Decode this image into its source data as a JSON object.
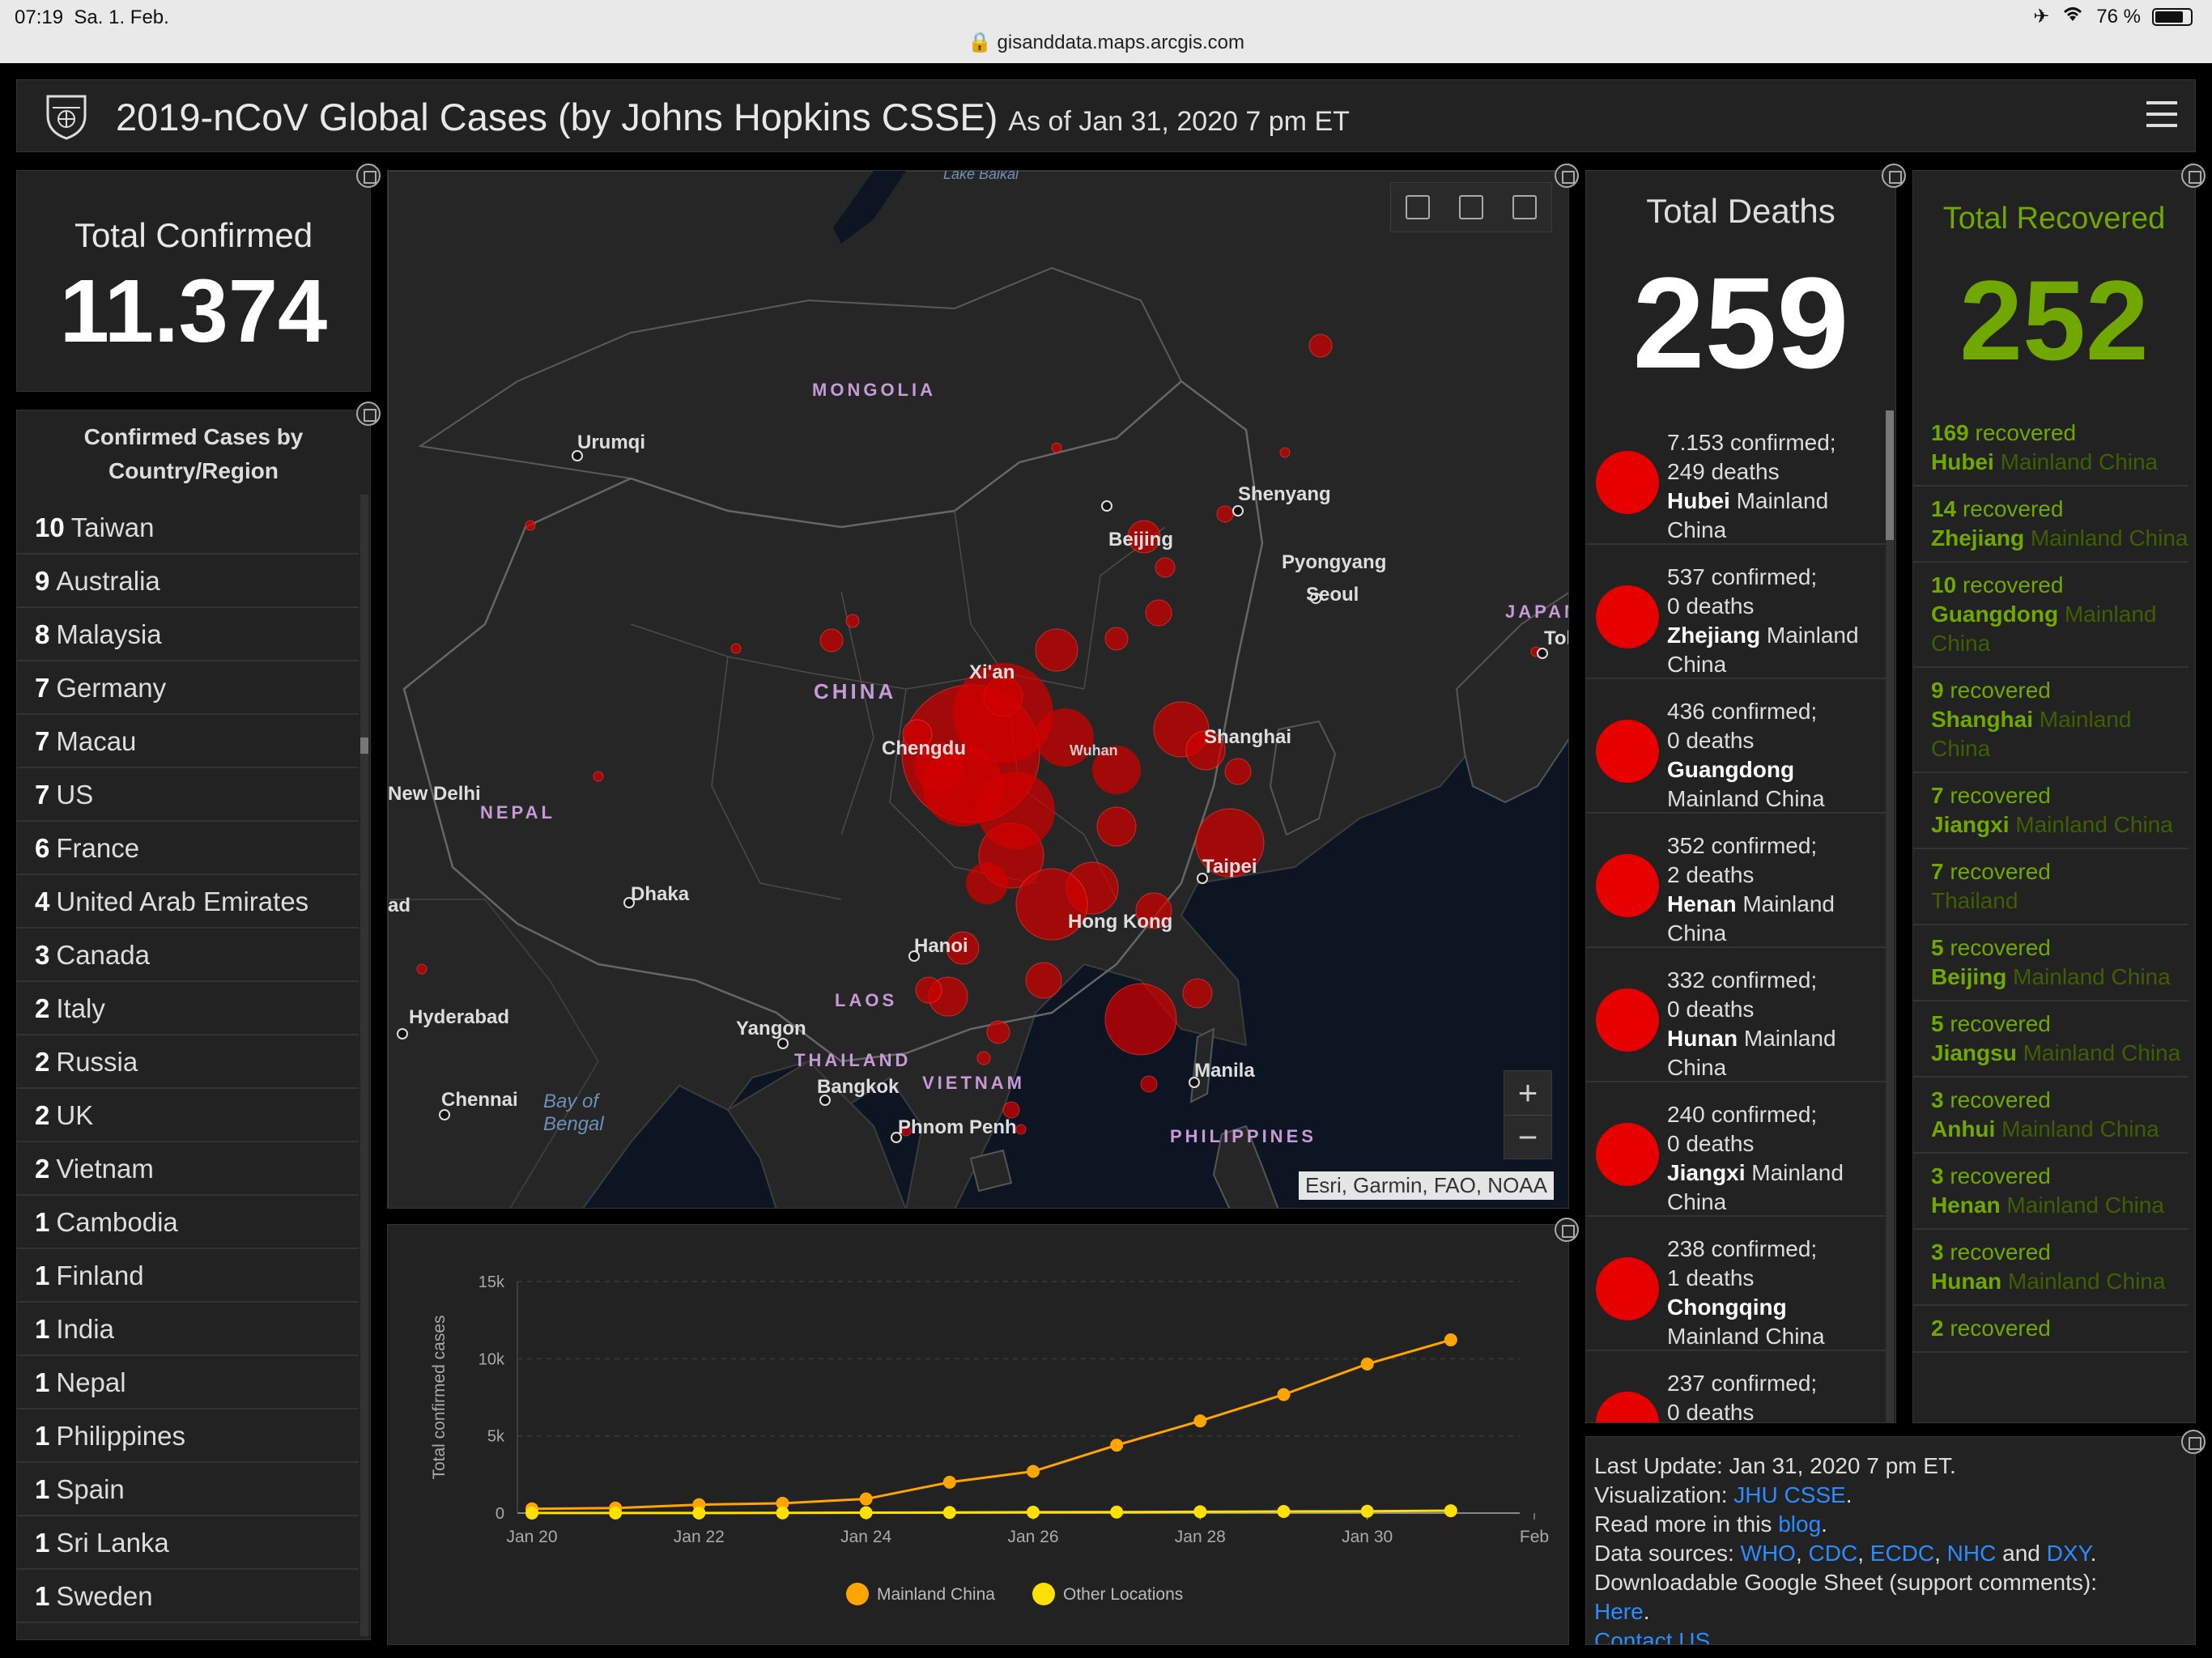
{
  "status_bar": {
    "time": "07:19",
    "date": "Sa. 1. Feb.",
    "battery": "76 %",
    "url": "gisanddata.maps.arcgis.com"
  },
  "header": {
    "title": "2019-nCoV Global Cases (by Johns Hopkins CSSE)",
    "as_of": "As of Jan 31, 2020 7 pm ET"
  },
  "total_confirmed": {
    "label": "Total Confirmed",
    "value": "11.374"
  },
  "confirmed_by_country": {
    "title_line1": "Confirmed Cases by",
    "title_line2": "Country/Region",
    "rows": [
      {
        "count": "10",
        "name": "Taiwan"
      },
      {
        "count": "9",
        "name": "Australia"
      },
      {
        "count": "8",
        "name": "Malaysia"
      },
      {
        "count": "7",
        "name": "Germany"
      },
      {
        "count": "7",
        "name": "Macau"
      },
      {
        "count": "7",
        "name": "US"
      },
      {
        "count": "6",
        "name": "France"
      },
      {
        "count": "4",
        "name": "United Arab Emirates"
      },
      {
        "count": "3",
        "name": "Canada"
      },
      {
        "count": "2",
        "name": "Italy"
      },
      {
        "count": "2",
        "name": "Russia"
      },
      {
        "count": "2",
        "name": "UK"
      },
      {
        "count": "2",
        "name": "Vietnam"
      },
      {
        "count": "1",
        "name": "Cambodia"
      },
      {
        "count": "1",
        "name": "Finland"
      },
      {
        "count": "1",
        "name": "India"
      },
      {
        "count": "1",
        "name": "Nepal"
      },
      {
        "count": "1",
        "name": "Philippines"
      },
      {
        "count": "1",
        "name": "Spain"
      },
      {
        "count": "1",
        "name": "Sri Lanka"
      },
      {
        "count": "1",
        "name": "Sweden"
      }
    ]
  },
  "map": {
    "attribution": "Esri, Garmin, FAO, NOAA",
    "zoom_in": "+",
    "zoom_out": "−",
    "labels": {
      "mongolia": "MONGOLIA",
      "china": "CHINA",
      "nepal": "NEPAL",
      "japan": "JAPAN",
      "laos": "LAOS",
      "thailand": "THAILAND",
      "vietnam": "VIETNAM",
      "philippines": "PHILIPPINES",
      "baikal": "Lake Baikal",
      "bay_of_bengal_1": "Bay of",
      "bay_of_bengal_2": "Bengal",
      "urumqi": "Urumqi",
      "beijing": "Beijing",
      "shenyang": "Shenyang",
      "pyongyang": "Pyongyang",
      "seoul": "Seoul",
      "tokyo": "Tok",
      "xian": "Xi'an",
      "chengdu": "Chengdu",
      "wuhan": "Wuhan",
      "shanghai": "Shanghai",
      "new_delhi": "New Delhi",
      "dhaka": "Dhaka",
      "taipei": "Taipei",
      "hong_kong": "Hong Kong",
      "hanoi": "Hanoi",
      "ad": "ad",
      "hyderabad": "Hyderabad",
      "yangon": "Yangon",
      "bangkok": "Bangkok",
      "chennai": "Chennai",
      "phnom_penh": "Phnom Penh",
      "manila": "Manila"
    }
  },
  "total_deaths": {
    "label": "Total Deaths",
    "value": "259",
    "rows": [
      {
        "confirmed": "7.153 confirmed;",
        "deaths": "249 deaths",
        "place": "Hubei",
        "region": "Mainland China"
      },
      {
        "confirmed": "537 confirmed;",
        "deaths": "0 deaths",
        "place": "Zhejiang",
        "region": "Mainland China"
      },
      {
        "confirmed": "436 confirmed;",
        "deaths": "0 deaths",
        "place": "Guangdong",
        "region": "Mainland China"
      },
      {
        "confirmed": "352 confirmed;",
        "deaths": "2 deaths",
        "place": "Henan",
        "region": "Mainland China"
      },
      {
        "confirmed": "332 confirmed;",
        "deaths": "0 deaths",
        "place": "Hunan",
        "region": "Mainland China"
      },
      {
        "confirmed": "240 confirmed;",
        "deaths": "0 deaths",
        "place": "Jiangxi",
        "region": "Mainland China"
      },
      {
        "confirmed": "238 confirmed;",
        "deaths": "1 deaths",
        "place": "Chongqing",
        "region": "Mainland China"
      },
      {
        "confirmed": "237 confirmed;",
        "deaths": "0 deaths",
        "place": "",
        "region": ""
      }
    ]
  },
  "total_recovered": {
    "label": "Total Recovered",
    "value": "252",
    "rows": [
      {
        "count": "169",
        "word": "recovered",
        "place": "Hubei",
        "region": "Mainland China"
      },
      {
        "count": "14",
        "word": "recovered",
        "place": "Zhejiang",
        "region": "Mainland China"
      },
      {
        "count": "10",
        "word": "recovered",
        "place": "Guangdong",
        "region": "Mainland China"
      },
      {
        "count": "9",
        "word": "recovered",
        "place": "Shanghai",
        "region": "Mainland China"
      },
      {
        "count": "7",
        "word": "recovered",
        "place": "Jiangxi",
        "region": "Mainland China"
      },
      {
        "count": "7",
        "word": "recovered",
        "place": "",
        "region": "Thailand"
      },
      {
        "count": "5",
        "word": "recovered",
        "place": "Beijing",
        "region": "Mainland China"
      },
      {
        "count": "5",
        "word": "recovered",
        "place": "Jiangsu",
        "region": "Mainland China"
      },
      {
        "count": "3",
        "word": "recovered",
        "place": "Anhui",
        "region": "Mainland China"
      },
      {
        "count": "3",
        "word": "recovered",
        "place": "Henan",
        "region": "Mainland China"
      },
      {
        "count": "3",
        "word": "recovered",
        "place": "Hunan",
        "region": "Mainland China"
      },
      {
        "count": "2",
        "word": "recovered",
        "place": "",
        "region": ""
      }
    ]
  },
  "info": {
    "last_update": "Last Update: Jan 31, 2020 7 pm ET.",
    "viz_prefix": "Visualization:",
    "viz_link": "JHU CSSE",
    "read_prefix": "Read more in this",
    "read_link": "blog",
    "sources_prefix": "Data sources:",
    "sources": [
      "WHO",
      "CDC",
      "ECDC",
      "NHC",
      "DXY"
    ],
    "sources_and": "and",
    "sheet": "Downloadable Google Sheet (support comments):",
    "here": "Here",
    "contact": "Contact US"
  },
  "chart_data": {
    "type": "line",
    "ylabel": "Total confirmed cases",
    "xlabel": "",
    "ylim": [
      0,
      15000
    ],
    "yticks": [
      "0",
      "5k",
      "10k",
      "15k"
    ],
    "xticks": [
      "Jan 20",
      "Jan 22",
      "Jan 24",
      "Jan 26",
      "Jan 28",
      "Jan 30",
      "Feb"
    ],
    "x": [
      20,
      21,
      22,
      23,
      24,
      25,
      26,
      27,
      28,
      29,
      30,
      31
    ],
    "series": [
      {
        "name": "Mainland China",
        "color": "#ffa500",
        "values": [
          278,
          326,
          547,
          639,
          916,
          2000,
          2700,
          4400,
          5970,
          7678,
          9658,
          11221
        ]
      },
      {
        "name": "Other Locations",
        "color": "#ffe000",
        "values": [
          4,
          6,
          8,
          14,
          25,
          40,
          57,
          64,
          87,
          105,
          118,
          153
        ]
      }
    ],
    "legend": "bottom"
  }
}
